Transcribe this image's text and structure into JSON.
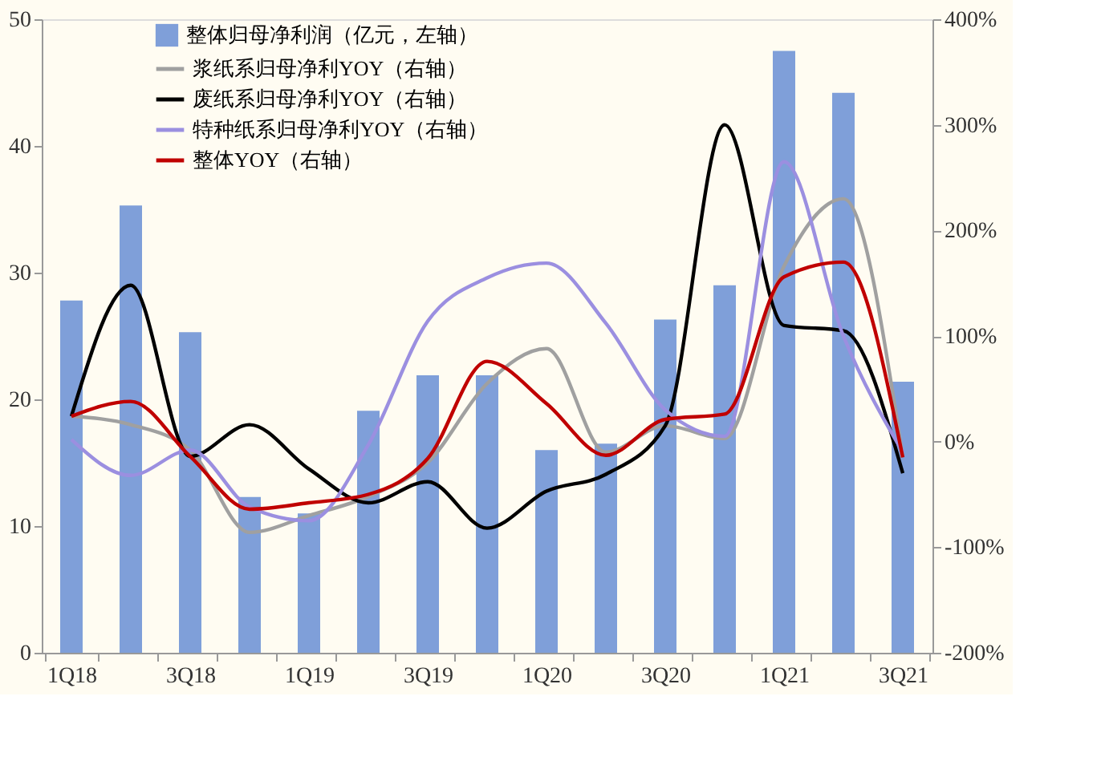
{
  "chart_data": {
    "type": "bar",
    "categories": [
      "1Q18",
      null,
      "3Q18",
      null,
      "1Q19",
      null,
      "3Q19",
      null,
      "1Q20",
      null,
      "3Q20",
      null,
      "1Q21",
      null,
      "3Q21"
    ],
    "series": [
      {
        "name": "整体归母净利润（亿元，左轴）",
        "color": "#7f9fd9",
        "values": [
          27.8,
          35.3,
          25.3,
          12.3,
          11.0,
          19.1,
          21.9,
          21.9,
          16.0,
          16.5,
          26.3,
          29.0,
          47.5,
          44.2,
          21.4
        ]
      },
      {
        "name": "浆纸系归母净利YOY（右轴）",
        "type": "line",
        "axis": "y2",
        "color": "#a0a0a0",
        "values": [
          24,
          16,
          -8,
          -86,
          -70,
          -52,
          -20,
          55,
          88,
          -10,
          15,
          3,
          166,
          230,
          -15
        ]
      },
      {
        "name": "废纸系归母净利YOY（右轴）",
        "type": "line",
        "axis": "y2",
        "color": "#000000",
        "values": [
          24,
          148,
          -14,
          16,
          -26,
          -58,
          -38,
          -82,
          -47,
          -31,
          15,
          300,
          110,
          105,
          -30
        ]
      },
      {
        "name": "特种纸系归母净利YOY（右轴）",
        "type": "line",
        "axis": "y2",
        "color": "#9b8fe0",
        "values": [
          2,
          -32,
          -8,
          -62,
          -75,
          -3,
          114,
          155,
          169,
          112,
          30,
          5,
          265,
          100,
          -10
        ]
      },
      {
        "name": "整体YOY（右轴）",
        "type": "line",
        "axis": "y2",
        "color": "#c00000",
        "values": [
          24,
          38,
          -14,
          -64,
          -58,
          -50,
          -16,
          76,
          36,
          -13,
          21,
          26,
          156,
          170,
          -15
        ]
      }
    ],
    "ylim": [
      0,
      50
    ],
    "yticks": [
      0,
      10,
      20,
      30,
      40,
      50
    ],
    "y2lim": [
      -200,
      400
    ],
    "y2ticks": [
      {
        "value": -200,
        "label": "-200%"
      },
      {
        "value": -100,
        "label": "-100%"
      },
      {
        "value": 0,
        "label": "0%"
      },
      {
        "value": 100,
        "label": "100%"
      },
      {
        "value": 200,
        "label": "200%"
      },
      {
        "value": 300,
        "label": "300%"
      },
      {
        "value": 400,
        "label": "400%"
      }
    ],
    "legend": "top left",
    "grid": false,
    "marker": "none",
    "line_style": "solid"
  }
}
